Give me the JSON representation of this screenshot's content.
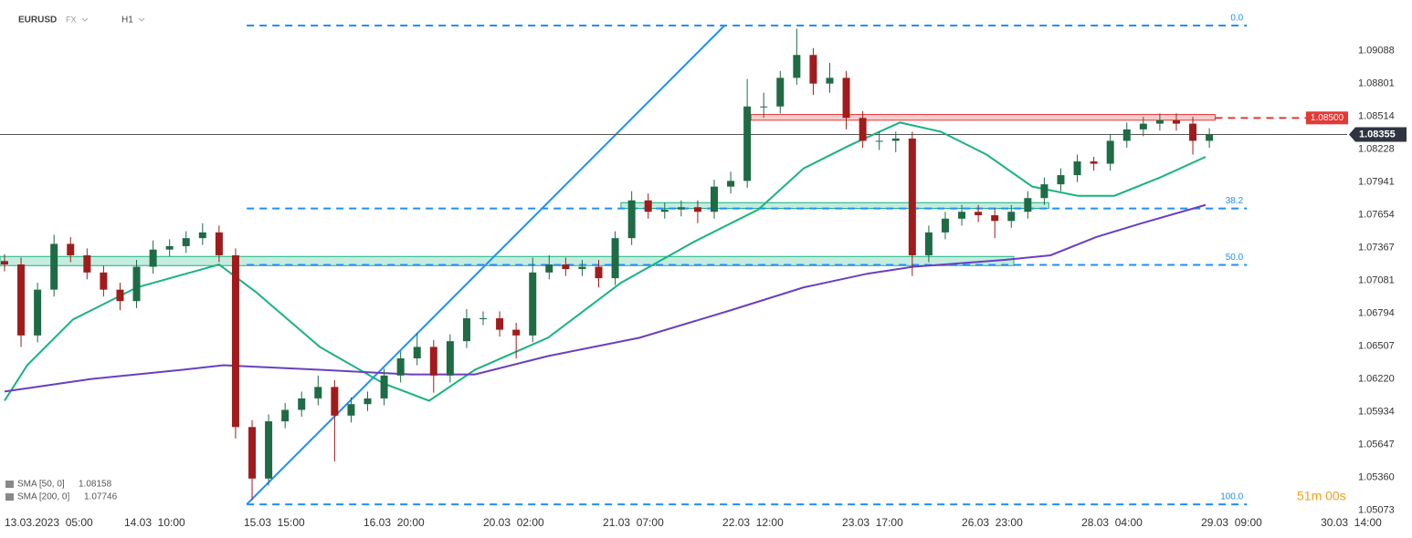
{
  "header": {
    "symbol": "EURUSD",
    "market": "FX",
    "interval": "H1"
  },
  "timer": "51m 00s",
  "chart_data": {
    "type": "candlestick",
    "x": [
      0,
      4,
      8,
      12,
      16,
      20,
      24,
      28,
      32,
      36,
      40,
      44,
      48,
      52,
      56,
      60,
      64,
      68,
      72,
      76,
      80,
      84,
      88,
      92,
      96,
      100,
      104,
      108,
      112,
      116,
      120,
      124,
      128,
      132,
      136,
      140,
      144,
      148,
      152,
      156,
      160,
      164,
      168,
      172,
      176,
      180,
      184,
      188,
      192,
      196,
      200,
      204,
      208,
      212,
      216,
      220,
      224,
      228,
      232,
      236,
      240,
      244,
      248,
      252,
      256,
      260,
      264,
      268,
      272,
      276,
      280,
      284,
      288,
      292
    ],
    "open": [
      1.0725,
      1.0722,
      1.066,
      1.07,
      1.074,
      1.073,
      1.0715,
      1.07,
      1.069,
      1.072,
      1.0735,
      1.0738,
      1.0745,
      1.075,
      1.073,
      1.058,
      1.0535,
      1.0585,
      1.0595,
      1.0605,
      1.0615,
      1.059,
      1.06,
      1.0605,
      1.0625,
      1.064,
      1.065,
      1.0625,
      1.0655,
      1.0675,
      1.0675,
      1.0665,
      1.066,
      1.0715,
      1.0722,
      1.0718,
      1.072,
      1.071,
      1.0745,
      1.0778,
      1.0768,
      1.077,
      1.0772,
      1.0768,
      1.079,
      1.0795,
      1.086,
      1.086,
      1.0885,
      1.0905,
      1.088,
      1.0885,
      1.085,
      1.083,
      1.083,
      1.0832,
      1.073,
      1.075,
      1.0762,
      1.0768,
      1.0765,
      1.076,
      1.0768,
      1.078,
      1.0792,
      1.08,
      1.0812,
      1.081,
      1.083,
      1.084,
      1.0845,
      1.0848,
      1.0845,
      1.083
    ],
    "high": [
      1.0731,
      1.0728,
      1.0706,
      1.0748,
      1.0746,
      1.0736,
      1.0721,
      1.0706,
      1.0726,
      1.0743,
      1.0744,
      1.0751,
      1.0758,
      1.0756,
      1.0736,
      1.0586,
      1.0591,
      1.0601,
      1.0611,
      1.0625,
      1.0621,
      1.0606,
      1.0611,
      1.0631,
      1.0646,
      1.0662,
      1.0656,
      1.0661,
      1.0683,
      1.0681,
      1.0681,
      1.0671,
      1.0728,
      1.073,
      1.0728,
      1.0726,
      1.0726,
      1.0751,
      1.0786,
      1.0784,
      1.0776,
      1.0778,
      1.0778,
      1.0796,
      1.0803,
      1.0884,
      1.0872,
      1.0891,
      1.0928,
      1.0911,
      1.0898,
      1.0891,
      1.0856,
      1.0838,
      1.0838,
      1.0838,
      1.0756,
      1.0768,
      1.0774,
      1.0774,
      1.0771,
      1.0774,
      1.0786,
      1.0798,
      1.0806,
      1.0818,
      1.0816,
      1.0836,
      1.0846,
      1.0851,
      1.0854,
      1.0854,
      1.0851,
      1.0841
    ],
    "low": [
      1.0716,
      1.065,
      1.0654,
      1.0694,
      1.0724,
      1.0709,
      1.0694,
      1.0682,
      1.0684,
      1.0714,
      1.0729,
      1.0732,
      1.0739,
      1.0724,
      1.057,
      1.0516,
      1.0529,
      1.0579,
      1.0589,
      1.0599,
      1.055,
      1.0584,
      1.0594,
      1.0599,
      1.0619,
      1.0634,
      1.061,
      1.0619,
      1.0649,
      1.0669,
      1.0659,
      1.064,
      1.0654,
      1.0709,
      1.0712,
      1.0712,
      1.0702,
      1.0704,
      1.0739,
      1.0762,
      1.0762,
      1.0764,
      1.0758,
      1.0762,
      1.0784,
      1.0789,
      1.085,
      1.0854,
      1.0879,
      1.087,
      1.0872,
      1.084,
      1.0824,
      1.0822,
      1.082,
      1.0712,
      1.0724,
      1.0744,
      1.0756,
      1.0759,
      1.0745,
      1.0754,
      1.0762,
      1.0774,
      1.0786,
      1.0794,
      1.0804,
      1.0804,
      1.0824,
      1.0834,
      1.0839,
      1.0839,
      1.0818,
      1.0824
    ],
    "close": [
      1.0722,
      1.066,
      1.07,
      1.074,
      1.073,
      1.0715,
      1.07,
      1.069,
      1.072,
      1.0735,
      1.0738,
      1.0745,
      1.075,
      1.073,
      1.058,
      1.0535,
      1.0585,
      1.0595,
      1.0605,
      1.0615,
      1.059,
      1.06,
      1.0605,
      1.0625,
      1.064,
      1.065,
      1.0625,
      1.0655,
      1.0675,
      1.0675,
      1.0665,
      1.066,
      1.0715,
      1.0722,
      1.0718,
      1.072,
      1.071,
      1.0745,
      1.0778,
      1.0768,
      1.077,
      1.0772,
      1.0768,
      1.079,
      1.0795,
      1.086,
      1.086,
      1.0885,
      1.0905,
      1.088,
      1.0885,
      1.085,
      1.083,
      1.083,
      1.0832,
      1.073,
      1.075,
      1.0762,
      1.0768,
      1.0765,
      1.076,
      1.0768,
      1.078,
      1.0792,
      1.08,
      1.0812,
      1.081,
      1.083,
      1.084,
      1.0845,
      1.0848,
      1.0845,
      1.083,
      1.08355
    ],
    "up_color": "#1f6b45",
    "down_color": "#a01c1c",
    "xlim": [
      -1.1,
      325.4
    ],
    "xticks": [
      {
        "value": 0,
        "label": "13.03.2023  05:00"
      },
      {
        "value": 29,
        "label": "14.03  10:00"
      },
      {
        "value": 58,
        "label": "15.03  15:00"
      },
      {
        "value": 87,
        "label": "16.03  20:00"
      },
      {
        "value": 116,
        "label": "20.03  02:00"
      },
      {
        "value": 145,
        "label": "21.03  07:00"
      },
      {
        "value": 174,
        "label": "22.03  12:00"
      },
      {
        "value": 203,
        "label": "23.03  17:00"
      },
      {
        "value": 232,
        "label": "26.03  23:00"
      },
      {
        "value": 261,
        "label": "28.03  04:00"
      },
      {
        "value": 290,
        "label": "29.03  09:00"
      },
      {
        "value": 319,
        "label": "30.03  14:00"
      }
    ],
    "ylim": [
      1.0503,
      1.0953
    ],
    "yticks": [
      1.09088,
      1.08801,
      1.08514,
      1.08228,
      1.07941,
      1.07654,
      1.07367,
      1.07081,
      1.06794,
      1.06507,
      {
        "value": 1.0622,
        "label": "1.06220"
      },
      1.05934,
      1.05647,
      {
        "value": 1.0536,
        "label": "1.05360"
      },
      1.05073
    ],
    "series": [
      {
        "name": "SMA [50, 0]",
        "color": "#19b37e",
        "last_value": 1.08158,
        "x": [
          0,
          5.5,
          16.6,
          32.1,
          52.0,
          60.9,
          76.4,
          91.9,
          102.9,
          114.0,
          131.7,
          149.4,
          167.2,
          182.7,
          193.7,
          204.8,
          217.0,
          226.9,
          238.0,
          249.1,
          260.1,
          269.0,
          280.1,
          291.1
        ],
        "values": [
          1.0603,
          1.0634,
          1.0674,
          1.0702,
          1.0722,
          1.0698,
          1.065,
          1.0618,
          1.0603,
          1.063,
          1.0658,
          1.0706,
          1.0742,
          1.077,
          1.0806,
          1.0826,
          1.0846,
          1.0838,
          1.0818,
          1.079,
          1.0782,
          1.0782,
          1.0798,
          1.0816
        ]
      },
      {
        "name": "SMA [200, 0]",
        "color": "#6a3fc0",
        "last_value": 1.07746,
        "x": [
          0,
          21.0,
          43.2,
          53.1,
          76.4,
          98.5,
          114.0,
          131.7,
          153.9,
          176.0,
          193.7,
          209.2,
          220.3,
          242.4,
          253.5,
          264.6,
          275.6,
          291.1
        ],
        "values": [
          1.0611,
          1.0622,
          1.063,
          1.0634,
          1.063,
          1.0626,
          1.0626,
          1.0642,
          1.0658,
          1.0682,
          1.0702,
          1.0714,
          1.072,
          1.0726,
          1.073,
          1.0746,
          1.0758,
          1.0774
        ]
      }
    ],
    "fibonacci": {
      "color": "#1e8fff",
      "x": [
        58.7,
        301.1
      ],
      "high": 1.09307,
      "low": 1.05125,
      "levels": [
        {
          "value": 0,
          "label": "0.0"
        },
        {
          "value": 38.2,
          "label": "38.2"
        },
        {
          "value": 50,
          "label": "50.0"
        },
        {
          "value": 100,
          "label": "100.0"
        }
      ]
    },
    "trendline": {
      "color": "#1e8fff",
      "x": [
        58.7,
        174.5
      ],
      "values": [
        1.05125,
        1.09307
      ]
    },
    "zones": [
      {
        "color": "#e53935",
        "x": [
          180.9,
          293.4
        ],
        "values": [
          1.0848,
          1.0853
        ]
      },
      {
        "color": "#19b37e",
        "x": [
          -1.1,
          244.6
        ],
        "values": [
          1.0721,
          1.0729
        ]
      },
      {
        "color": "#19b37e",
        "x": [
          149.4,
          253.1
        ],
        "values": [
          1.0771,
          1.0776
        ]
      }
    ],
    "resistance": {
      "value": 1.085,
      "label": "1.08500",
      "color": "#e53935",
      "x": [
        293.4,
        325.4
      ]
    },
    "last_price": 1.08355
  }
}
